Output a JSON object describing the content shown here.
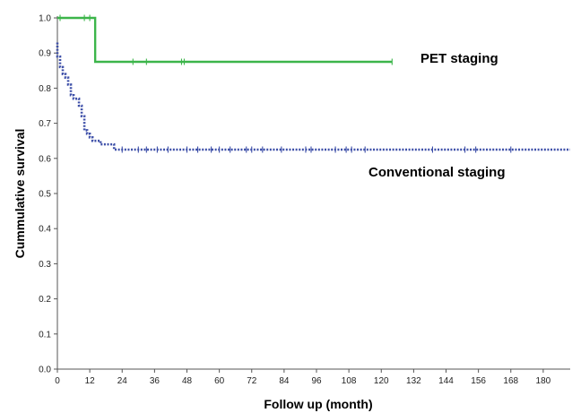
{
  "chart_data": {
    "type": "line",
    "title": "",
    "xlabel": "Follow up (month)",
    "ylabel": "Cummulative survival",
    "xlim": [
      0,
      190
    ],
    "ylim": [
      0.0,
      1.0
    ],
    "xticks": [
      0,
      12,
      24,
      36,
      48,
      60,
      72,
      84,
      96,
      108,
      120,
      132,
      144,
      156,
      168,
      180
    ],
    "xtick_labels": [
      "0",
      "12",
      "24",
      "36",
      "48",
      "60",
      "72",
      "84",
      "96",
      "108",
      "120",
      "132",
      "144",
      "156",
      "168",
      "180"
    ],
    "yticks": [
      0.0,
      0.1,
      0.2,
      0.3,
      0.4,
      0.5,
      0.6,
      0.7,
      0.8,
      0.9,
      1.0
    ],
    "ytick_labels": [
      "0.0",
      "0.1",
      "0.2",
      "0.3",
      "0.4",
      "0.5",
      "0.6",
      "0.7",
      "0.8",
      "0.9",
      "1.0"
    ],
    "grid": false,
    "legend": "none",
    "series": [
      {
        "name": "PET staging",
        "color": "#3cb54a",
        "style": "solid",
        "x": [
          0,
          14,
          14,
          124
        ],
        "y": [
          1.0,
          1.0,
          0.875,
          0.875
        ],
        "censor_x": [
          1,
          10,
          12,
          28,
          33,
          46,
          47,
          124
        ],
        "censor_y": [
          1.0,
          1.0,
          1.0,
          0.875,
          0.875,
          0.875,
          0.875,
          0.875
        ]
      },
      {
        "name": "Conventional staging",
        "color": "#3d4fa8",
        "style": "dotted",
        "x": [
          0,
          0,
          1,
          1,
          2,
          2,
          3,
          3,
          4,
          4,
          5,
          5,
          6,
          6,
          8,
          8,
          9,
          9,
          10,
          10,
          11,
          11,
          12,
          12,
          13,
          13,
          16,
          16,
          21,
          21,
          190
        ],
        "y": [
          0.93,
          0.89,
          0.89,
          0.86,
          0.86,
          0.84,
          0.84,
          0.83,
          0.83,
          0.81,
          0.81,
          0.78,
          0.78,
          0.77,
          0.77,
          0.75,
          0.75,
          0.72,
          0.72,
          0.68,
          0.68,
          0.67,
          0.67,
          0.66,
          0.66,
          0.65,
          0.65,
          0.64,
          0.64,
          0.625,
          0.625
        ],
        "censor_x": [
          24,
          30,
          33,
          37,
          41,
          48,
          52,
          57,
          60,
          64,
          70,
          72,
          76,
          83,
          92,
          94,
          103,
          107,
          109,
          114,
          139,
          151,
          155,
          168
        ],
        "censor_y": [
          0.625,
          0.625,
          0.625,
          0.625,
          0.625,
          0.625,
          0.625,
          0.625,
          0.625,
          0.625,
          0.625,
          0.625,
          0.625,
          0.625,
          0.625,
          0.625,
          0.625,
          0.625,
          0.625,
          0.625,
          0.625,
          0.625,
          0.625,
          0.625
        ]
      }
    ]
  }
}
